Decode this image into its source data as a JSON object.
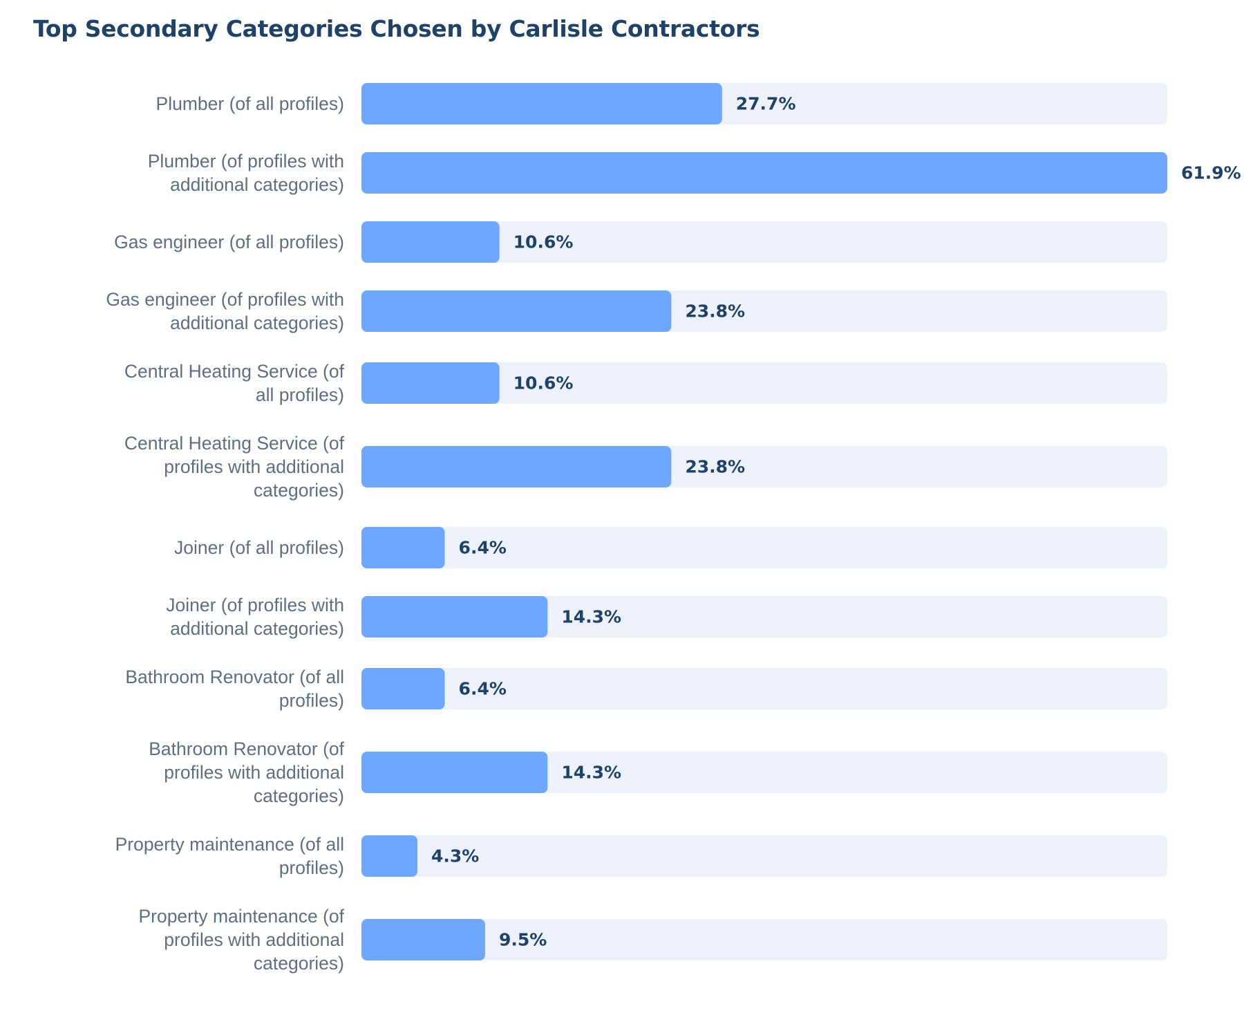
{
  "chart_data": {
    "type": "bar",
    "orientation": "horizontal",
    "title": "Top Secondary Categories Chosen by Carlisle Contractors",
    "xlabel": "",
    "ylabel": "",
    "xlim": [
      0,
      61.9
    ],
    "grid": false,
    "legend": "none",
    "categories": [
      "Plumber (of all profiles)",
      "Plumber (of profiles with additional categories)",
      "Gas engineer (of all profiles)",
      "Gas engineer (of profiles with additional categories)",
      "Central Heating Service (of all profiles)",
      "Central Heating Service (of profiles with additional categories)",
      "Joiner (of all profiles)",
      "Joiner (of profiles with additional categories)",
      "Bathroom Renovator (of all profiles)",
      "Bathroom Renovator (of profiles with additional categories)",
      "Property maintenance (of all profiles)",
      "Property maintenance (of profiles with additional categories)"
    ],
    "category_lines": [
      [
        "Plumber (of all profiles)"
      ],
      [
        "Plumber (of profiles with",
        "additional categories)"
      ],
      [
        "Gas engineer (of all profiles)"
      ],
      [
        "Gas engineer (of profiles with",
        "additional categories)"
      ],
      [
        "Central Heating Service (of",
        "all profiles)"
      ],
      [
        "Central Heating Service (of",
        "profiles with additional",
        "categories)"
      ],
      [
        "Joiner (of all profiles)"
      ],
      [
        "Joiner (of profiles with",
        "additional categories)"
      ],
      [
        "Bathroom Renovator (of all",
        "profiles)"
      ],
      [
        "Bathroom Renovator (of",
        "profiles with additional",
        "categories)"
      ],
      [
        "Property maintenance (of all",
        "profiles)"
      ],
      [
        "Property maintenance (of",
        "profiles with additional",
        "categories)"
      ]
    ],
    "values": [
      27.7,
      61.9,
      10.6,
      23.8,
      10.6,
      23.8,
      6.4,
      14.3,
      6.4,
      14.3,
      4.3,
      9.5
    ],
    "value_labels": [
      "27.7%",
      "61.9%",
      "10.6%",
      "23.8%",
      "10.6%",
      "23.8%",
      "6.4%",
      "14.3%",
      "6.4%",
      "14.3%",
      "4.3%",
      "9.5%"
    ],
    "unit": "%"
  },
  "colors": {
    "bar": "#6ea8fe",
    "track": "#edf2fa",
    "title": "#1f4268",
    "category_text": "#5e6f85",
    "value_text": "#1f4268"
  }
}
